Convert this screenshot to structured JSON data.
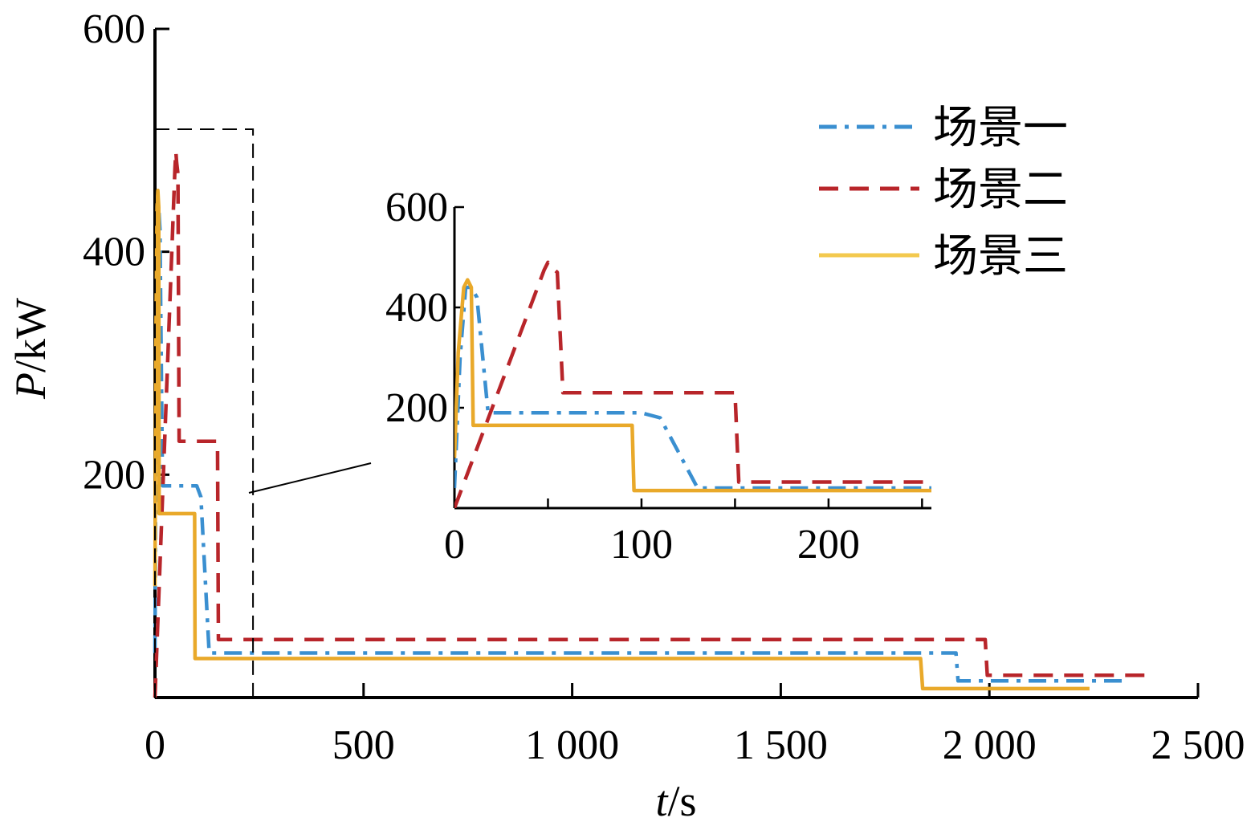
{
  "chart_data": {
    "type": "line",
    "xlabel": {
      "var": "t",
      "sep": "/",
      "unit": "s"
    },
    "ylabel": {
      "var": "P",
      "sep": "/",
      "unit": "kW"
    },
    "xlim": [
      0,
      2500
    ],
    "ylim": [
      0,
      600
    ],
    "x_ticks": [
      0,
      500,
      1000,
      1500,
      2000,
      2500
    ],
    "x_tick_labels": [
      "0",
      "500",
      "1 000",
      "1 500",
      "2 000",
      "2 500"
    ],
    "y_ticks": [
      200,
      400,
      600
    ],
    "y_tick_labels": [
      "200",
      "400",
      "600"
    ],
    "legend_position": "top-right",
    "colors": {
      "blue": "#3a8fd0",
      "red": "#b8252a",
      "yellow": "#e9a92a",
      "yellow_legend": "#f3c94e"
    },
    "series": [
      {
        "name": "场景一",
        "style": "dash-dot",
        "color": "#3a8fd0",
        "x": [
          0,
          3,
          6,
          9,
          12,
          18,
          100,
          110,
          130,
          1920,
          1925,
          2000,
          2330
        ],
        "y": [
          40,
          300,
          440,
          440,
          420,
          190,
          190,
          180,
          40,
          40,
          15,
          15,
          15
        ]
      },
      {
        "name": "场景二",
        "style": "dash",
        "color": "#b8252a",
        "x": [
          0,
          48,
          50,
          52,
          55,
          58,
          150,
          152,
          1990,
          1995,
          2000,
          2380
        ],
        "y": [
          0,
          475,
          490,
          480,
          470,
          230,
          230,
          52,
          52,
          20,
          20,
          20
        ]
      },
      {
        "name": "场景三",
        "style": "solid",
        "color": "#e9a92a",
        "x": [
          0,
          2,
          5,
          7,
          9,
          10,
          95,
          96,
          1835,
          1840,
          2240
        ],
        "y": [
          100,
          310,
          440,
          455,
          440,
          165,
          165,
          35,
          35,
          8,
          8
        ]
      }
    ],
    "inset": {
      "xlim": [
        0,
        255
      ],
      "ylim": [
        0,
        600
      ],
      "x_ticks": [
        0,
        100,
        200
      ],
      "x_tick_labels": [
        "0",
        "100",
        "200"
      ],
      "y_ticks": [
        200,
        400,
        600
      ],
      "y_tick_labels": [
        "200",
        "400",
        "600"
      ],
      "zoom_region": {
        "x": [
          0,
          235
        ],
        "y": [
          0,
          510
        ]
      }
    }
  }
}
